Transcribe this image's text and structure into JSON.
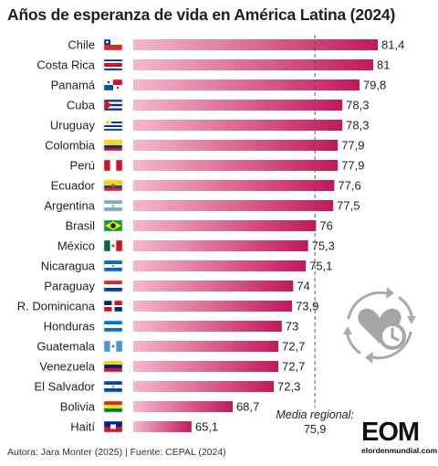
{
  "title": "Años de esperanza de vida en América Latina (2024)",
  "footer": "Autora: Jara Monter (2025) | Fuente: CEPAL (2024)",
  "logo": {
    "main": "EOM",
    "sub": "elordenmundial.com"
  },
  "median": {
    "label": "Media regional:",
    "value": "75,9"
  },
  "colors": {
    "bar_dark": "#c2185b",
    "bar_light": "#f8c2d1",
    "axis_line": "#555555"
  },
  "chart_data": {
    "type": "bar",
    "orientation": "horizontal",
    "title": "Años de esperanza de vida en América Latina (2024)",
    "categories": [
      "Chile",
      "Costa Rica",
      "Panamá",
      "Cuba",
      "Uruguay",
      "Colombia",
      "Perú",
      "Ecuador",
      "Argentina",
      "Brasil",
      "México",
      "Nicaragua",
      "Paraguay",
      "R. Dominicana",
      "Honduras",
      "Guatemala",
      "Venezuela",
      "El Salvador",
      "Bolivia",
      "Haití"
    ],
    "values": [
      81.4,
      81,
      79.8,
      78.3,
      78.3,
      77.9,
      77.9,
      77.6,
      77.5,
      76,
      75.3,
      75.1,
      74,
      73.9,
      73,
      72.7,
      72.7,
      72.3,
      68.7,
      65.1
    ],
    "value_labels": [
      "81,4",
      "81",
      "79,8",
      "78,3",
      "78,3",
      "77,9",
      "77,9",
      "77,6",
      "77,5",
      "76",
      "75,3",
      "75,1",
      "74",
      "73,9",
      "73",
      "72,7",
      "72,7",
      "72,3",
      "68,7",
      "65,1"
    ],
    "flags": [
      "chile-flag",
      "costa-rica-flag",
      "panama-flag",
      "cuba-flag",
      "uruguay-flag",
      "colombia-flag",
      "peru-flag",
      "ecuador-flag",
      "argentina-flag",
      "brasil-flag",
      "mexico-flag",
      "nicaragua-flag",
      "paraguay-flag",
      "dominican-republic-flag",
      "honduras-flag",
      "guatemala-flag",
      "venezuela-flag",
      "el-salvador-flag",
      "bolivia-flag",
      "haiti-flag"
    ],
    "reference_line": {
      "value": 75.9,
      "style": "dashed"
    },
    "xlim": [
      60,
      81.4
    ]
  }
}
